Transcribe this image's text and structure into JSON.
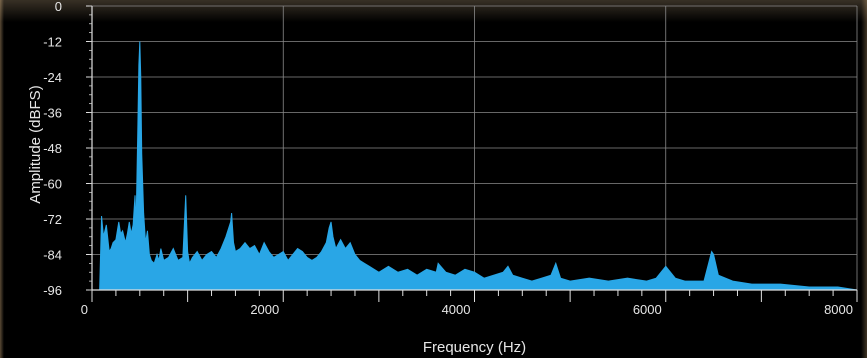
{
  "chart_data": {
    "type": "area",
    "title": "",
    "xlabel": "Frequency (Hz)",
    "ylabel": "Amplitude (dBFS)",
    "xlim": [
      0,
      8000
    ],
    "ylim": [
      -96,
      0
    ],
    "x_ticks": [
      0,
      2000,
      4000,
      6000,
      8000
    ],
    "y_ticks": [
      0,
      -12,
      -24,
      -36,
      -48,
      -60,
      -72,
      -84,
      -96
    ],
    "grid": true,
    "legend": "none",
    "color": "#29a6e6",
    "background": "#000000",
    "series": [
      {
        "x": [
          80,
          100,
          120,
          150,
          180,
          200,
          220,
          250,
          280,
          300,
          320,
          350,
          370,
          390,
          410,
          430,
          450,
          460,
          470,
          480,
          490,
          500,
          510,
          520,
          540,
          560,
          580,
          600,
          620,
          650,
          680,
          700,
          720,
          750,
          800,
          850,
          900,
          950,
          980,
          1000,
          1020,
          1050,
          1100,
          1150,
          1200,
          1250,
          1300,
          1350,
          1400,
          1450,
          1460,
          1470,
          1480,
          1500,
          1550,
          1600,
          1650,
          1700,
          1750,
          1800,
          1850,
          1900,
          1950,
          2000,
          2050,
          2100,
          2150,
          2200,
          2250,
          2300,
          2350,
          2400,
          2450,
          2480,
          2500,
          2520,
          2550,
          2600,
          2650,
          2700,
          2750,
          2800,
          2850,
          2900,
          2950,
          3000,
          3100,
          3200,
          3300,
          3400,
          3500,
          3600,
          3620,
          3700,
          3800,
          3900,
          4000,
          4100,
          4200,
          4300,
          4350,
          4400,
          4500,
          4600,
          4700,
          4800,
          4850,
          4900,
          5000,
          5200,
          5400,
          5600,
          5800,
          5900,
          6000,
          6100,
          6200,
          6400,
          6480,
          6500,
          6550,
          6700,
          6900,
          7000,
          7200,
          7500,
          7800,
          8000
        ],
        "y": [
          -96,
          -71,
          -78,
          -74,
          -83,
          -82,
          -80,
          -79,
          -73,
          -77,
          -76,
          -80,
          -77,
          -73,
          -77,
          -74,
          -64,
          -75,
          -58,
          -40,
          -20,
          -12,
          -24,
          -50,
          -70,
          -80,
          -76,
          -84,
          -86,
          -87,
          -84,
          -86,
          -82,
          -86,
          -85,
          -82,
          -86,
          -85,
          -64,
          -83,
          -87,
          -85,
          -83,
          -86,
          -84,
          -83,
          -85,
          -82,
          -78,
          -73,
          -70,
          -75,
          -80,
          -83,
          -82,
          -80,
          -82,
          -81,
          -84,
          -80,
          -83,
          -85,
          -84,
          -83,
          -86,
          -84,
          -82,
          -83,
          -85,
          -86,
          -85,
          -83,
          -80,
          -75,
          -73,
          -78,
          -82,
          -79,
          -82,
          -80,
          -84,
          -86,
          -87,
          -88,
          -89,
          -90,
          -88,
          -90,
          -89,
          -91,
          -89,
          -90,
          -87,
          -90,
          -91,
          -89,
          -90,
          -92,
          -91,
          -90,
          -88,
          -91,
          -92,
          -93,
          -92,
          -91,
          -87,
          -92,
          -93,
          -92,
          -93,
          -92,
          -93,
          -92,
          -88,
          -92,
          -93,
          -93,
          -83,
          -84,
          -91,
          -93,
          -94,
          -94,
          -94,
          -95,
          -95,
          -96
        ]
      }
    ]
  }
}
